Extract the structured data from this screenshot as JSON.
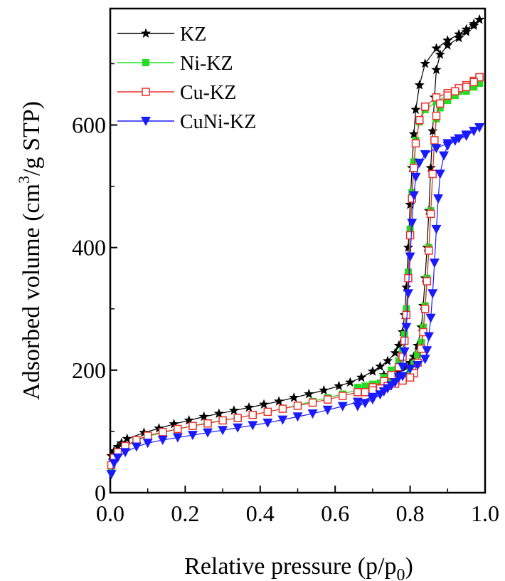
{
  "chart_data": {
    "type": "line",
    "xlabel": "Relative pressure (p/p",
    "xlabel_sub": "0",
    "xlabel_end": ")",
    "ylabel": "Adsorbed volume (cm",
    "ylabel_sup": "3",
    "ylabel_end": "/g STP)",
    "xlim": [
      0.0,
      1.0
    ],
    "ylim": [
      0,
      790
    ],
    "xticks": [
      "0.0",
      "0.2",
      "0.4",
      "0.6",
      "0.8",
      "1.0"
    ],
    "xtick_values": [
      0.0,
      0.2,
      0.4,
      0.6,
      0.8,
      1.0
    ],
    "yticks": [
      "0",
      "200",
      "400",
      "600"
    ],
    "ytick_values": [
      0,
      200,
      400,
      600
    ],
    "legend_position": "top-left",
    "grid": false,
    "series": [
      {
        "name": "KZ",
        "color": "#000000",
        "marker": "star",
        "adsorption": [
          [
            0.003,
            60
          ],
          [
            0.01,
            68
          ],
          [
            0.02,
            75
          ],
          [
            0.03,
            81
          ],
          [
            0.045,
            88
          ],
          [
            0.09,
            98
          ],
          [
            0.13,
            105
          ],
          [
            0.17,
            112
          ],
          [
            0.21,
            118
          ],
          [
            0.25,
            124
          ],
          [
            0.29,
            129
          ],
          [
            0.33,
            134
          ],
          [
            0.37,
            139
          ],
          [
            0.41,
            144
          ],
          [
            0.45,
            149
          ],
          [
            0.49,
            155
          ],
          [
            0.53,
            161
          ],
          [
            0.57,
            167
          ],
          [
            0.61,
            174
          ],
          [
            0.64,
            180
          ],
          [
            0.67,
            188
          ],
          [
            0.7,
            198
          ],
          [
            0.72,
            206
          ],
          [
            0.74,
            215
          ],
          [
            0.76,
            228
          ],
          [
            0.77,
            240
          ],
          [
            0.78,
            262
          ],
          [
            0.785,
            290
          ],
          [
            0.79,
            335
          ],
          [
            0.795,
            400
          ],
          [
            0.8,
            470
          ],
          [
            0.805,
            530
          ],
          [
            0.81,
            585
          ],
          [
            0.815,
            625
          ],
          [
            0.825,
            665
          ],
          [
            0.84,
            700
          ],
          [
            0.87,
            725
          ],
          [
            0.9,
            738
          ],
          [
            0.93,
            748
          ],
          [
            0.95,
            756
          ],
          [
            0.97,
            765
          ],
          [
            0.985,
            772
          ]
        ],
        "desorption": [
          [
            0.985,
            772
          ],
          [
            0.97,
            762
          ],
          [
            0.95,
            752
          ],
          [
            0.93,
            742
          ],
          [
            0.9,
            730
          ],
          [
            0.88,
            715
          ],
          [
            0.87,
            690
          ],
          [
            0.865,
            645
          ],
          [
            0.86,
            590
          ],
          [
            0.855,
            530
          ],
          [
            0.85,
            460
          ],
          [
            0.845,
            400
          ],
          [
            0.84,
            350
          ],
          [
            0.835,
            305
          ],
          [
            0.83,
            270
          ],
          [
            0.82,
            240
          ],
          [
            0.81,
            222
          ],
          [
            0.8,
            212
          ],
          [
            0.79,
            205
          ],
          [
            0.77,
            198
          ],
          [
            0.75,
            195
          ],
          [
            0.73,
            192
          ]
        ]
      },
      {
        "name": "Ni-KZ",
        "color": "#22dd22",
        "marker": "square-filled",
        "adsorption": [
          [
            0.003,
            40
          ],
          [
            0.01,
            55
          ],
          [
            0.02,
            65
          ],
          [
            0.04,
            75
          ],
          [
            0.07,
            85
          ],
          [
            0.1,
            92
          ],
          [
            0.14,
            98
          ],
          [
            0.18,
            104
          ],
          [
            0.22,
            109
          ],
          [
            0.26,
            114
          ],
          [
            0.3,
            118
          ],
          [
            0.34,
            122
          ],
          [
            0.38,
            127
          ],
          [
            0.42,
            132
          ],
          [
            0.46,
            137
          ],
          [
            0.5,
            143
          ],
          [
            0.54,
            149
          ],
          [
            0.58,
            155
          ],
          [
            0.62,
            161
          ],
          [
            0.66,
            168
          ],
          [
            0.7,
            177
          ],
          [
            0.73,
            188
          ],
          [
            0.75,
            200
          ],
          [
            0.77,
            215
          ],
          [
            0.78,
            232
          ],
          [
            0.785,
            258
          ],
          [
            0.79,
            300
          ],
          [
            0.795,
            360
          ],
          [
            0.8,
            430
          ],
          [
            0.805,
            490
          ],
          [
            0.81,
            540
          ],
          [
            0.815,
            575
          ],
          [
            0.825,
            605
          ],
          [
            0.84,
            625
          ],
          [
            0.87,
            638
          ],
          [
            0.9,
            648
          ],
          [
            0.93,
            655
          ],
          [
            0.95,
            660
          ],
          [
            0.97,
            665
          ],
          [
            0.985,
            668
          ]
        ],
        "desorption": [
          [
            0.985,
            668
          ],
          [
            0.97,
            662
          ],
          [
            0.95,
            655
          ],
          [
            0.92,
            648
          ],
          [
            0.9,
            640
          ],
          [
            0.88,
            628
          ],
          [
            0.87,
            610
          ],
          [
            0.865,
            570
          ],
          [
            0.86,
            520
          ],
          [
            0.855,
            460
          ],
          [
            0.85,
            400
          ],
          [
            0.845,
            350
          ],
          [
            0.84,
            305
          ],
          [
            0.835,
            270
          ],
          [
            0.83,
            245
          ],
          [
            0.82,
            225
          ],
          [
            0.81,
            210
          ],
          [
            0.8,
            200
          ],
          [
            0.78,
            190
          ],
          [
            0.76,
            185
          ],
          [
            0.74,
            182
          ],
          [
            0.72,
            179
          ],
          [
            0.7,
            176
          ],
          [
            0.68,
            174
          ],
          [
            0.66,
            172
          ]
        ]
      },
      {
        "name": "Cu-KZ",
        "color": "#e8302a",
        "marker": "square-open",
        "adsorption": [
          [
            0.003,
            45
          ],
          [
            0.01,
            57
          ],
          [
            0.02,
            66
          ],
          [
            0.04,
            76
          ],
          [
            0.07,
            86
          ],
          [
            0.1,
            93
          ],
          [
            0.14,
            99
          ],
          [
            0.18,
            104
          ],
          [
            0.22,
            109
          ],
          [
            0.26,
            113
          ],
          [
            0.3,
            118
          ],
          [
            0.34,
            122
          ],
          [
            0.38,
            127
          ],
          [
            0.42,
            132
          ],
          [
            0.46,
            137
          ],
          [
            0.5,
            142
          ],
          [
            0.54,
            147
          ],
          [
            0.58,
            152
          ],
          [
            0.62,
            158
          ],
          [
            0.66,
            164
          ],
          [
            0.7,
            172
          ],
          [
            0.73,
            182
          ],
          [
            0.75,
            192
          ],
          [
            0.77,
            205
          ],
          [
            0.78,
            222
          ],
          [
            0.785,
            248
          ],
          [
            0.79,
            290
          ],
          [
            0.795,
            350
          ],
          [
            0.8,
            420
          ],
          [
            0.805,
            480
          ],
          [
            0.81,
            530
          ],
          [
            0.815,
            570
          ],
          [
            0.825,
            608
          ],
          [
            0.84,
            630
          ],
          [
            0.87,
            645
          ],
          [
            0.9,
            652
          ],
          [
            0.93,
            660
          ],
          [
            0.95,
            665
          ],
          [
            0.97,
            672
          ],
          [
            0.985,
            678
          ]
        ],
        "desorption": [
          [
            0.985,
            678
          ],
          [
            0.97,
            670
          ],
          [
            0.95,
            662
          ],
          [
            0.92,
            655
          ],
          [
            0.9,
            648
          ],
          [
            0.88,
            635
          ],
          [
            0.87,
            615
          ],
          [
            0.865,
            575
          ],
          [
            0.86,
            520
          ],
          [
            0.855,
            455
          ],
          [
            0.85,
            395
          ],
          [
            0.845,
            345
          ],
          [
            0.84,
            300
          ],
          [
            0.835,
            262
          ],
          [
            0.83,
            235
          ],
          [
            0.82,
            212
          ],
          [
            0.81,
            195
          ],
          [
            0.8,
            188
          ],
          [
            0.78,
            183
          ],
          [
            0.76,
            178
          ],
          [
            0.74,
            174
          ],
          [
            0.72,
            170
          ],
          [
            0.7,
            167
          ],
          [
            0.68,
            164
          ]
        ]
      },
      {
        "name": "CuNi-KZ",
        "color": "#1a1aff",
        "marker": "triangle-down",
        "adsorption": [
          [
            0.003,
            30
          ],
          [
            0.01,
            48
          ],
          [
            0.02,
            57
          ],
          [
            0.04,
            66
          ],
          [
            0.07,
            75
          ],
          [
            0.1,
            81
          ],
          [
            0.14,
            86
          ],
          [
            0.18,
            90
          ],
          [
            0.22,
            94
          ],
          [
            0.26,
            98
          ],
          [
            0.3,
            102
          ],
          [
            0.34,
            106
          ],
          [
            0.38,
            110
          ],
          [
            0.42,
            114
          ],
          [
            0.46,
            119
          ],
          [
            0.5,
            124
          ],
          [
            0.54,
            129
          ],
          [
            0.58,
            135
          ],
          [
            0.62,
            141
          ],
          [
            0.66,
            148
          ],
          [
            0.7,
            156
          ],
          [
            0.73,
            165
          ],
          [
            0.75,
            175
          ],
          [
            0.77,
            188
          ],
          [
            0.78,
            205
          ],
          [
            0.785,
            230
          ],
          [
            0.79,
            270
          ],
          [
            0.795,
            325
          ],
          [
            0.8,
            385
          ],
          [
            0.805,
            440
          ],
          [
            0.81,
            485
          ],
          [
            0.815,
            515
          ],
          [
            0.825,
            538
          ],
          [
            0.84,
            552
          ],
          [
            0.87,
            562
          ],
          [
            0.9,
            570
          ],
          [
            0.93,
            578
          ],
          [
            0.95,
            584
          ],
          [
            0.97,
            590
          ],
          [
            0.985,
            596
          ]
        ],
        "desorption": [
          [
            0.985,
            596
          ],
          [
            0.97,
            590
          ],
          [
            0.95,
            582
          ],
          [
            0.92,
            574
          ],
          [
            0.9,
            566
          ],
          [
            0.89,
            550
          ],
          [
            0.88,
            520
          ],
          [
            0.875,
            480
          ],
          [
            0.87,
            430
          ],
          [
            0.865,
            375
          ],
          [
            0.86,
            325
          ],
          [
            0.855,
            285
          ],
          [
            0.85,
            255
          ],
          [
            0.845,
            232
          ],
          [
            0.84,
            218
          ],
          [
            0.82,
            208
          ],
          [
            0.8,
            202
          ],
          [
            0.78,
            190
          ],
          [
            0.76,
            180
          ],
          [
            0.74,
            170
          ],
          [
            0.72,
            160
          ],
          [
            0.7,
            152
          ],
          [
            0.68,
            146
          ],
          [
            0.66,
            141
          ]
        ]
      }
    ]
  }
}
